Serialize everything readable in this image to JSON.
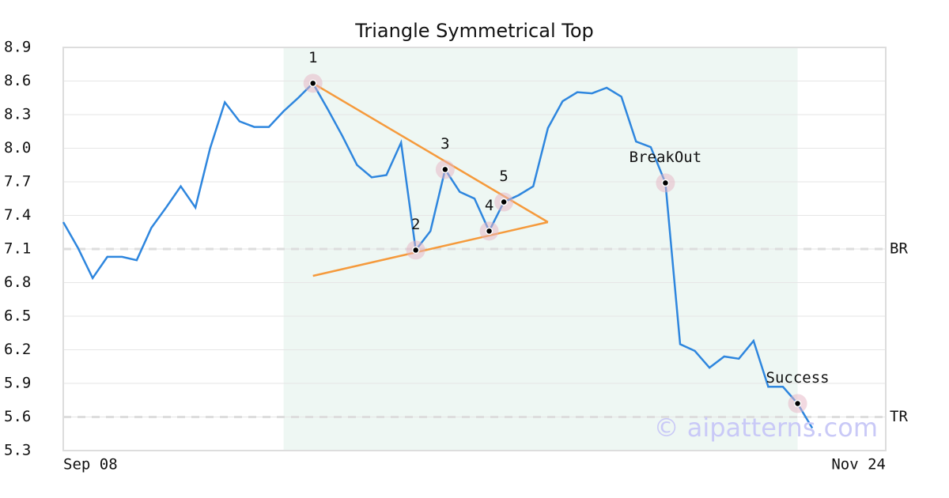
{
  "chart_data": {
    "type": "line",
    "title": "Triangle Symmetrical Top",
    "watermark": "© aipatterns.com",
    "x": [
      0,
      1,
      2,
      3,
      4,
      5,
      6,
      7,
      8,
      9,
      10,
      11,
      12,
      13,
      14,
      15,
      16,
      17,
      18,
      19,
      20,
      21,
      22,
      23,
      24,
      25,
      26,
      27,
      28,
      29,
      30,
      31,
      32,
      33,
      34,
      35,
      36,
      37,
      38,
      39,
      40,
      41,
      42,
      43,
      44,
      45,
      46,
      47,
      48,
      49,
      50,
      51
    ],
    "values": [
      7.34,
      7.11,
      6.84,
      7.03,
      7.03,
      7.0,
      7.29,
      7.47,
      7.66,
      7.47,
      8.0,
      8.41,
      8.24,
      8.19,
      8.19,
      8.33,
      8.45,
      8.58,
      8.35,
      8.11,
      7.85,
      7.74,
      7.76,
      8.05,
      7.09,
      7.26,
      7.81,
      7.61,
      7.55,
      7.26,
      7.52,
      7.58,
      7.66,
      8.18,
      8.42,
      8.5,
      8.49,
      8.54,
      8.46,
      8.06,
      8.01,
      7.69,
      6.25,
      6.19,
      6.04,
      6.14,
      6.12,
      6.28,
      5.87,
      5.87,
      5.72,
      5.5
    ],
    "color": "#2e86de",
    "xlim": [
      0,
      56
    ],
    "xticks": [
      {
        "value": 0,
        "label": "Sep 08"
      },
      {
        "value": 56,
        "label": "Nov 24"
      }
    ],
    "ylim": [
      5.3,
      8.9
    ],
    "yticks": [
      5.3,
      5.6,
      5.9,
      6.2,
      6.5,
      6.8,
      7.1,
      7.4,
      7.7,
      {
        "value": 8,
        "label": "8.0"
      },
      8.3,
      8.6,
      8.9
    ],
    "grid": true,
    "highlight_x": [
      15,
      50
    ],
    "highlight_color": "#eef7f3",
    "trendline_color": "#f59a3c",
    "trendlines": [
      {
        "x": [
          17,
          33
        ],
        "y": [
          8.58,
          7.34
        ]
      },
      {
        "x": [
          17,
          33
        ],
        "y": [
          6.86,
          7.34
        ]
      }
    ],
    "levels": [
      {
        "label": "BR",
        "value": 7.1
      },
      {
        "label": "TR",
        "value": 5.6
      }
    ],
    "points": [
      {
        "label": "1",
        "x": 17,
        "y": 8.58
      },
      {
        "label": "2",
        "x": 24,
        "y": 7.09
      },
      {
        "label": "3",
        "x": 26,
        "y": 7.81
      },
      {
        "label": "4",
        "x": 29,
        "y": 7.26
      },
      {
        "label": "5",
        "x": 30,
        "y": 7.52
      },
      {
        "label": "BreakOut",
        "x": 41,
        "y": 7.69
      },
      {
        "label": "Success",
        "x": 50,
        "y": 5.72
      }
    ]
  }
}
